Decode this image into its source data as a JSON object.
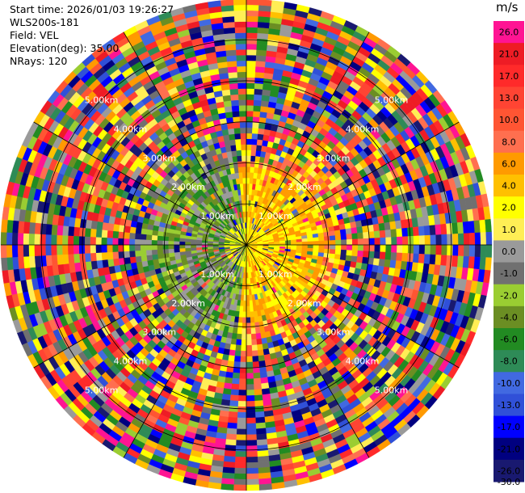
{
  "header": {
    "start_time": "Start time: 2026/01/03 19:26:27",
    "instrument": "WLS200s-181",
    "field": "Field: VEL",
    "elevation": "Elevation(deg): 35.00",
    "nrays": "NRays: 120"
  },
  "colorbar": {
    "unit": "m/s",
    "ticks": [
      "26.0",
      "21.0",
      "17.0",
      "13.0",
      "10.0",
      "8.0",
      "6.0",
      "4.0",
      "2.0",
      "1.0",
      "0.0",
      "-1.0",
      "-2.0",
      "-4.0",
      "-6.0",
      "-8.0",
      "-10.0",
      "-13.0",
      "-17.0",
      "-21.0",
      "-26.0",
      "-30.0"
    ],
    "colors": [
      "#ff1493",
      "#ee1c25",
      "#ff2a2a",
      "#ff4433",
      "#ff5533",
      "#ff6f4f",
      "#ff9a00",
      "#ffc000",
      "#ffff00",
      "#ffee55",
      "#9a9a9a",
      "#707070",
      "#9acd32",
      "#6b8e23",
      "#228b22",
      "#2e8b57",
      "#4169e1",
      "#3050d8",
      "#0000ff",
      "#000080",
      "#191970"
    ]
  },
  "chart_data": {
    "type": "heatmap",
    "projection": "polar PPI",
    "field": "VEL",
    "units": "m/s",
    "n_rays": 120,
    "ring_labels": [
      "1.00km",
      "2.00km",
      "3.00km",
      "4.00km",
      "5.00km"
    ],
    "ring_ranges_km": [
      1,
      2,
      3,
      4,
      5
    ],
    "max_range_km": 5.0,
    "color_range": [
      -30,
      26
    ],
    "description_pattern": "Near-range (< ~1.5 km) shows coherent positive velocities (yellow/orange) toward north-east and south-east sectors and negative (olive/green) toward west/south-west; beyond ~2 km the field is noisy with colors spanning the full scale."
  }
}
